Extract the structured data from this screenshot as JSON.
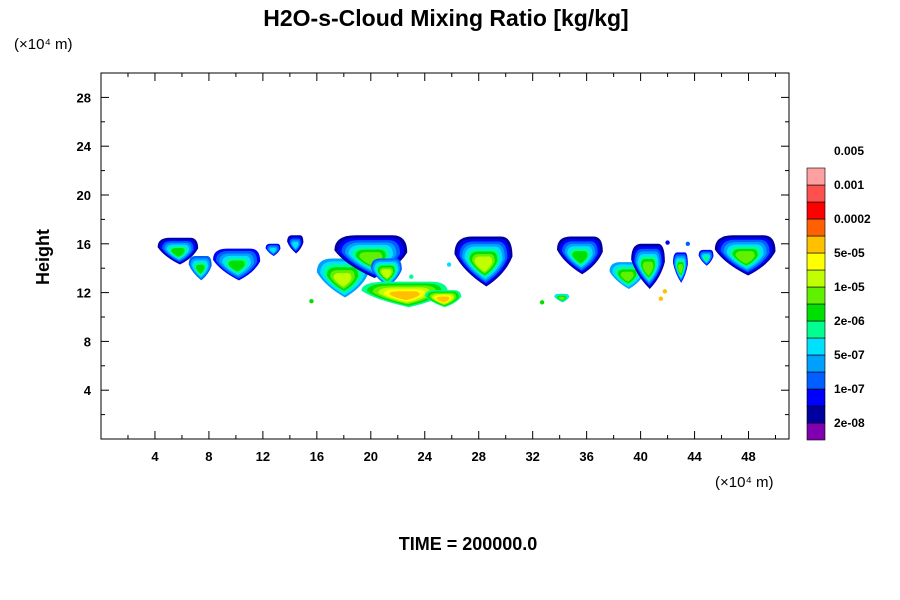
{
  "chart_data": {
    "type": "heatmap",
    "title": "H2O-s-Cloud Mixing Ratio [kg/kg]",
    "ylabel": "Height",
    "x_unit": "(×10⁴ m)",
    "y_unit": "(×10⁴ m)",
    "footer": "TIME = 200000.0",
    "xlim": [
      0,
      51
    ],
    "ylim": [
      0,
      30
    ],
    "x_ticks": [
      4,
      8,
      12,
      16,
      20,
      24,
      28,
      32,
      36,
      40,
      44,
      48
    ],
    "y_ticks": [
      4,
      8,
      12,
      16,
      20,
      24,
      28
    ],
    "x_tick_labels": [
      "4",
      "8",
      "12",
      "16",
      "20",
      "24",
      "28",
      "32",
      "36",
      "40",
      "44",
      "48"
    ],
    "y_tick_labels": [
      "4",
      "8",
      "12",
      "16",
      "20",
      "24",
      "28"
    ],
    "colorbar": {
      "colors": [
        "#8000b0",
        "#0000a0",
        "#0000ff",
        "#0060ff",
        "#00a0ff",
        "#00e0ff",
        "#00ff90",
        "#00e000",
        "#60f000",
        "#c0ff00",
        "#ffff00",
        "#ffc000",
        "#ff6000",
        "#ff0000",
        "#ff5050",
        "#ffa0a0"
      ],
      "labels": [
        "2e-08",
        "1e-07",
        "5e-07",
        "2e-06",
        "1e-05",
        "5e-05",
        "0.0002",
        "0.001",
        "0.005"
      ]
    },
    "clouds": [
      {
        "x0": 4.2,
        "x1": 7.2,
        "ytop": 16.5,
        "ybot": 14.3,
        "peak": 7,
        "edge": 1
      },
      {
        "x0": 6.5,
        "x1": 8.2,
        "ytop": 15.0,
        "ybot": 13.0,
        "peak": 7,
        "edge": 3
      },
      {
        "x0": 8.3,
        "x1": 11.8,
        "ytop": 15.6,
        "ybot": 13.0,
        "peak": 7,
        "edge": 2
      },
      {
        "x0": 12.2,
        "x1": 13.3,
        "ytop": 16.0,
        "ybot": 15.0,
        "peak": 5,
        "edge": 2
      },
      {
        "x0": 13.8,
        "x1": 15.0,
        "ytop": 16.7,
        "ybot": 15.2,
        "peak": 5,
        "edge": 1
      },
      {
        "x0": 16.0,
        "x1": 19.8,
        "ytop": 14.8,
        "ybot": 11.6,
        "peak": 9,
        "edge": 4
      },
      {
        "x0": 17.3,
        "x1": 22.7,
        "ytop": 16.7,
        "ybot": 13.2,
        "peak": 8,
        "edge": 1
      },
      {
        "x0": 20.0,
        "x1": 22.3,
        "ytop": 14.8,
        "ybot": 12.5,
        "peak": 9,
        "edge": 3
      },
      {
        "x0": 19.3,
        "x1": 25.7,
        "ytop": 12.9,
        "ybot": 10.8,
        "peak": 11,
        "edge": 6
      },
      {
        "x0": 24.0,
        "x1": 26.7,
        "ytop": 12.2,
        "ybot": 10.8,
        "peak": 11,
        "edge": 6
      },
      {
        "x0": 26.2,
        "x1": 30.5,
        "ytop": 16.6,
        "ybot": 12.5,
        "peak": 9,
        "edge": 1
      },
      {
        "x0": 33.6,
        "x1": 34.7,
        "ytop": 11.9,
        "ybot": 11.2,
        "peak": 8,
        "edge": 5
      },
      {
        "x0": 33.8,
        "x1": 37.2,
        "ytop": 16.6,
        "ybot": 13.5,
        "peak": 7,
        "edge": 1
      },
      {
        "x0": 37.7,
        "x1": 40.3,
        "ytop": 14.5,
        "ybot": 12.3,
        "peak": 8,
        "edge": 4
      },
      {
        "x0": 39.3,
        "x1": 41.8,
        "ytop": 16.0,
        "ybot": 12.3,
        "peak": 8,
        "edge": 1
      },
      {
        "x0": 42.4,
        "x1": 43.5,
        "ytop": 15.3,
        "ybot": 12.8,
        "peak": 8,
        "edge": 2
      },
      {
        "x0": 44.3,
        "x1": 45.4,
        "ytop": 15.5,
        "ybot": 14.2,
        "peak": 6,
        "edge": 2
      },
      {
        "x0": 45.5,
        "x1": 50.0,
        "ytop": 16.7,
        "ybot": 13.4,
        "peak": 8,
        "edge": 1
      }
    ],
    "specks": [
      {
        "x": 15.6,
        "y": 11.3,
        "c": 7
      },
      {
        "x": 23.0,
        "y": 13.3,
        "c": 6
      },
      {
        "x": 25.8,
        "y": 14.3,
        "c": 5
      },
      {
        "x": 32.7,
        "y": 11.2,
        "c": 7
      },
      {
        "x": 41.8,
        "y": 12.1,
        "c": 11
      },
      {
        "x": 41.5,
        "y": 11.5,
        "c": 11
      },
      {
        "x": 43.5,
        "y": 16.0,
        "c": 3
      },
      {
        "x": 42.0,
        "y": 16.1,
        "c": 2
      }
    ]
  }
}
